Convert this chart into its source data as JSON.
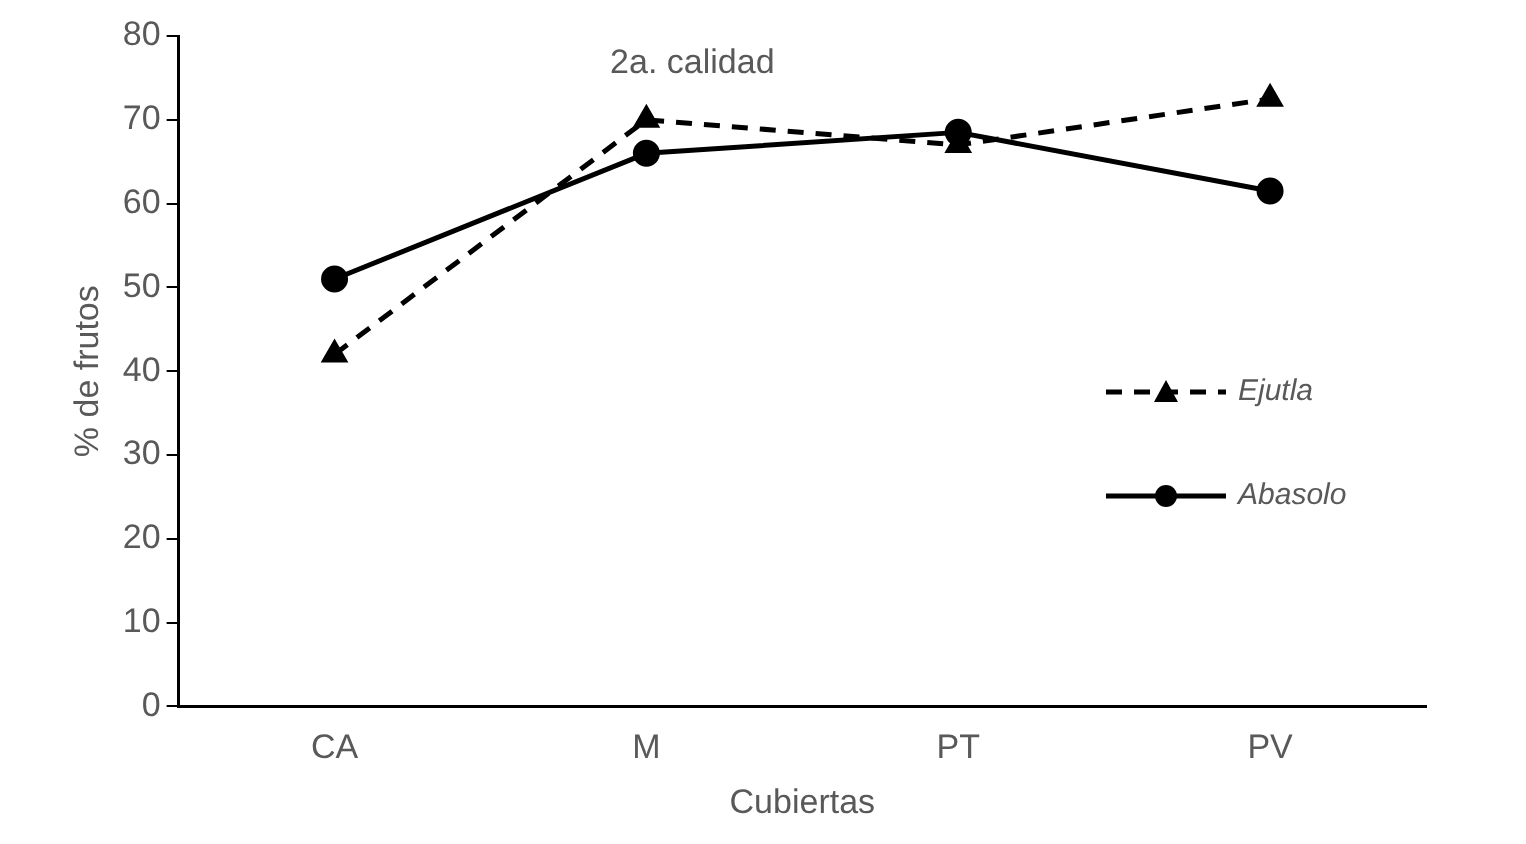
{
  "chart_data": {
    "type": "line",
    "title": "2a. calidad",
    "xlabel": "Cubiertas",
    "ylabel": "% de frutos",
    "categories": [
      "CA",
      "M",
      "PT",
      "PV"
    ],
    "series": [
      {
        "name": "Ejutla",
        "color": "#000000",
        "values": [
          42,
          70,
          67,
          72.5
        ],
        "marker": "triangle",
        "line_style": "dashed"
      },
      {
        "name": "Abasolo",
        "color": "#000000",
        "values": [
          51,
          66,
          68.5,
          61.5
        ],
        "marker": "circle",
        "line_style": "solid"
      }
    ],
    "ylim": [
      0,
      80
    ],
    "yticks": [
      0,
      10,
      20,
      30,
      40,
      50,
      60,
      70,
      80
    ],
    "grid": false,
    "legend": "right"
  }
}
